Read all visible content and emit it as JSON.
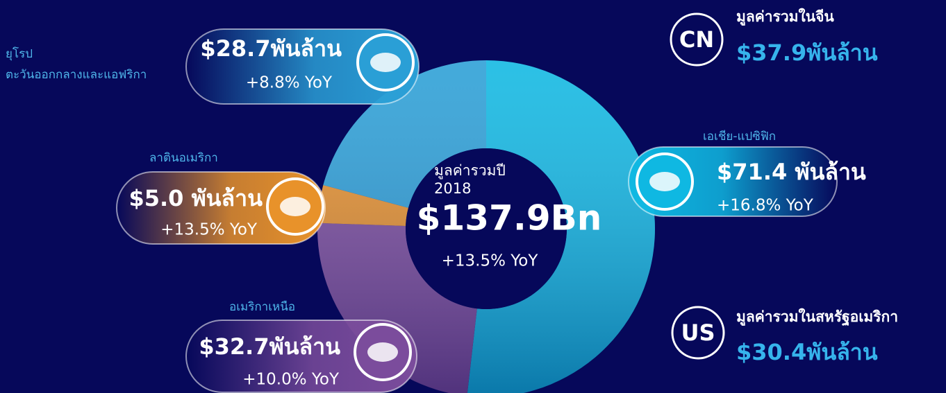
{
  "chart_data": {
    "type": "pie",
    "donut": true,
    "categories": [
      "เอเชีย-แปซิฟิก",
      "อเมริกาเหนือ",
      "ลาตินอเมริกา",
      "ยุโรป ตะวันออกกลางและแอฟริกา"
    ],
    "values": [
      71.4,
      32.7,
      5.0,
      28.7
    ],
    "value_labels": [
      "$71.4 พันล้าน",
      "$32.7พันล้าน",
      "$5.0 พันล้าน",
      "$28.7พันล้าน"
    ],
    "growth_labels": [
      "+16.8% YoY",
      "+10.0% YoY",
      "+13.5% YoY",
      "+8.8% YoY"
    ],
    "colors": [
      "#0fb8e2",
      "#7b4c9c",
      "#e8922a",
      "#2a9fd6"
    ],
    "center": {
      "title": [
        "มูลค่ารวมปี",
        "2018"
      ],
      "total_label": "$137.9Bn",
      "growth_label": "+13.5% YoY"
    }
  },
  "highlights": [
    {
      "code": "CN",
      "label": "มูลค่ารวมในจีน",
      "value_label": "$37.9พันล้าน"
    },
    {
      "code": "US",
      "label": "มูลค่ารวมในสหรัฐอเมริกา",
      "value_label": "$30.4พันล้าน"
    }
  ]
}
